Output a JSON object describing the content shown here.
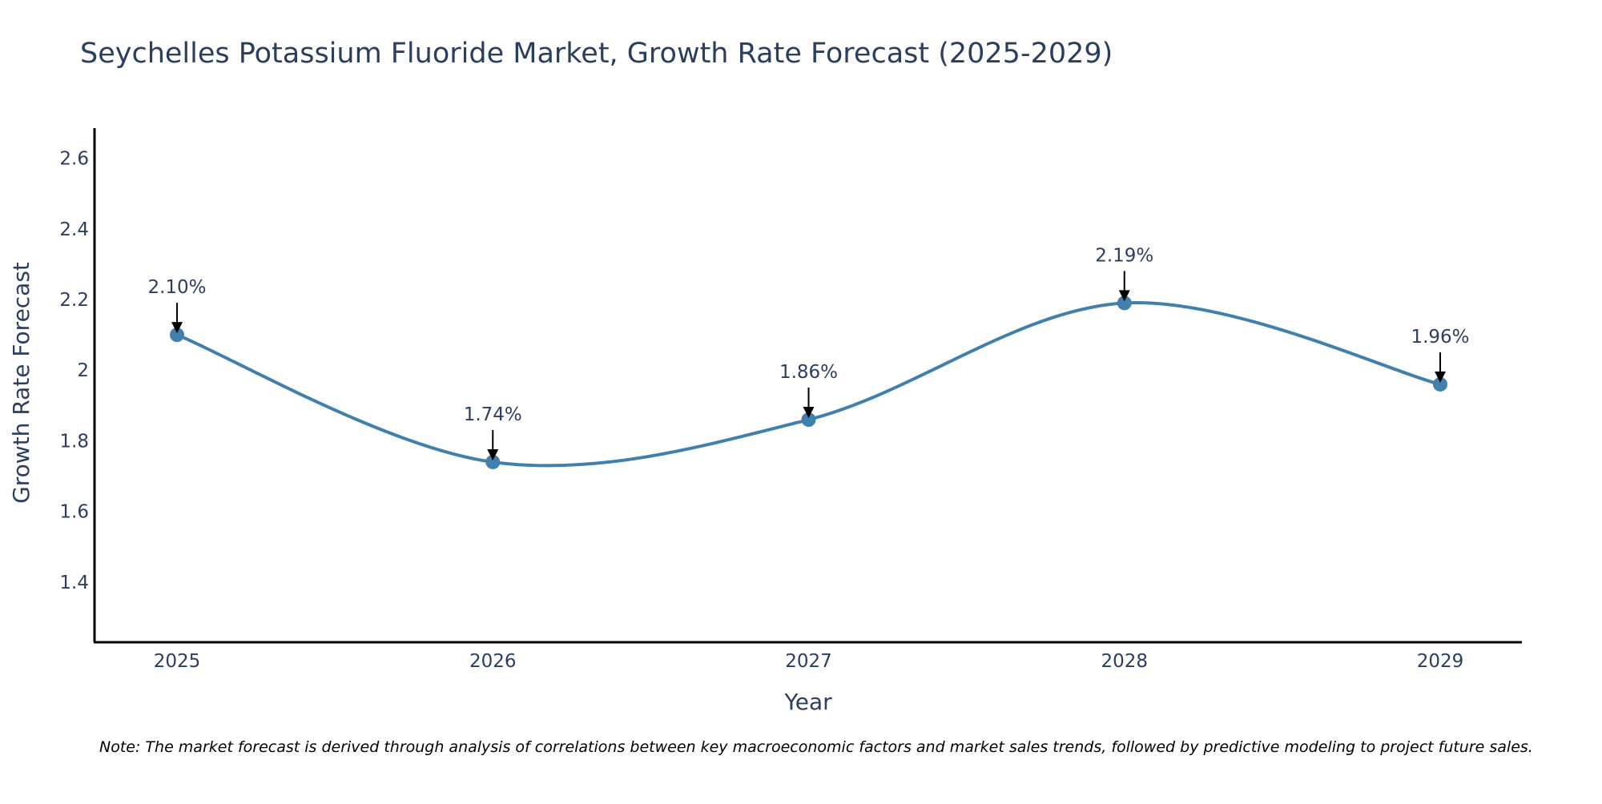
{
  "chart_data": {
    "type": "line",
    "title": "Seychelles Potassium Fluoride Market, Growth Rate Forecast (2025-2029)",
    "xlabel": "Year",
    "ylabel": "Growth Rate Forecast",
    "categories": [
      "2025",
      "2026",
      "2027",
      "2028",
      "2029"
    ],
    "values": [
      2.1,
      1.74,
      1.86,
      2.19,
      1.96
    ],
    "data_labels": [
      "2.10%",
      "1.74%",
      "1.86%",
      "2.19%",
      "1.96%"
    ],
    "ylim": [
      1.23,
      2.685
    ],
    "yticks": [
      1.4,
      1.6,
      1.8,
      2,
      2.2,
      2.4,
      2.6
    ],
    "ytick_labels": [
      "1.4",
      "1.6",
      "1.8",
      "2",
      "2.2",
      "2.4",
      "2.6"
    ],
    "grid": false,
    "line_shape": "spline",
    "line_color": "#4180ac",
    "marker_color": "#4180ac",
    "arrow_color": "#000000",
    "note": "Note: The market forecast is derived through analysis of correlations between key macroeconomic factors and market sales trends, followed by predictive modeling to project future sales."
  }
}
